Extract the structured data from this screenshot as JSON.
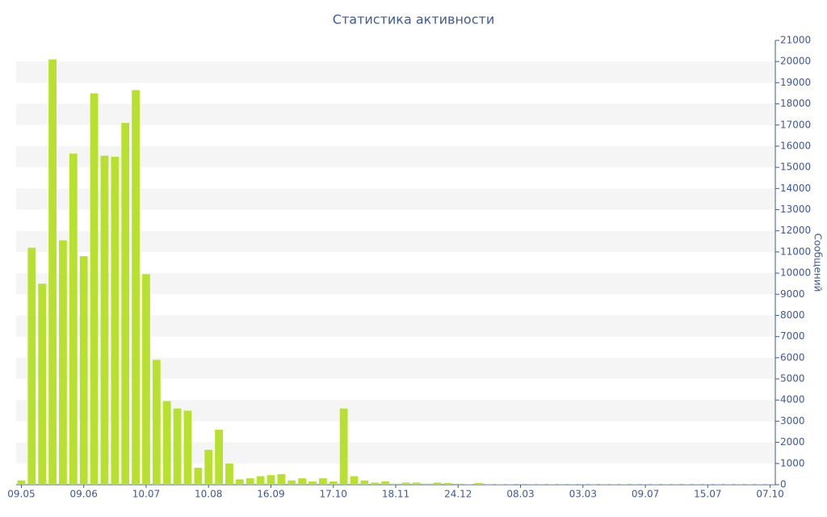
{
  "chart_data": {
    "type": "bar",
    "title": "Статистика активности",
    "y_label": "Сообщений",
    "color": "#b8e030",
    "grid": true,
    "categories": [
      "09.05",
      null,
      null,
      null,
      null,
      null,
      "09.06",
      null,
      null,
      null,
      null,
      null,
      "10.07",
      null,
      null,
      null,
      null,
      null,
      "10.08",
      null,
      null,
      null,
      null,
      null,
      "16.09",
      null,
      null,
      null,
      null,
      null,
      "17.10",
      null,
      null,
      null,
      null,
      null,
      "18.11",
      null,
      null,
      null,
      null,
      null,
      "24.12",
      null,
      null,
      null,
      null,
      null,
      "08.03",
      null,
      null,
      null,
      null,
      null,
      "03.03",
      null,
      null,
      null,
      null,
      null,
      "09.07",
      null,
      null,
      null,
      null,
      null,
      "15.07",
      null,
      null,
      null,
      null,
      null,
      "07.10"
    ],
    "values": [
      200,
      11200,
      9500,
      20100,
      11550,
      15650,
      10800,
      18500,
      15550,
      15500,
      17100,
      18650,
      9950,
      5900,
      3950,
      3600,
      3500,
      800,
      1650,
      2600,
      1000,
      250,
      300,
      400,
      450,
      500,
      200,
      300,
      150,
      300,
      150,
      3600,
      400,
      200,
      100,
      150,
      50,
      100,
      100,
      50,
      100,
      80,
      50,
      30,
      80,
      30,
      30,
      30,
      40,
      30,
      30,
      30,
      30,
      30,
      30,
      30,
      30,
      30,
      30,
      30,
      30,
      30,
      30,
      30,
      30,
      30,
      30,
      30,
      30,
      30,
      30,
      30,
      30
    ],
    "ylim": [
      0,
      21000
    ],
    "yticks": [
      0,
      1000,
      2000,
      3000,
      4000,
      5000,
      6000,
      7000,
      8000,
      9000,
      10000,
      11000,
      12000,
      13000,
      14000,
      15000,
      16000,
      17000,
      18000,
      19000,
      20000,
      21000
    ]
  }
}
